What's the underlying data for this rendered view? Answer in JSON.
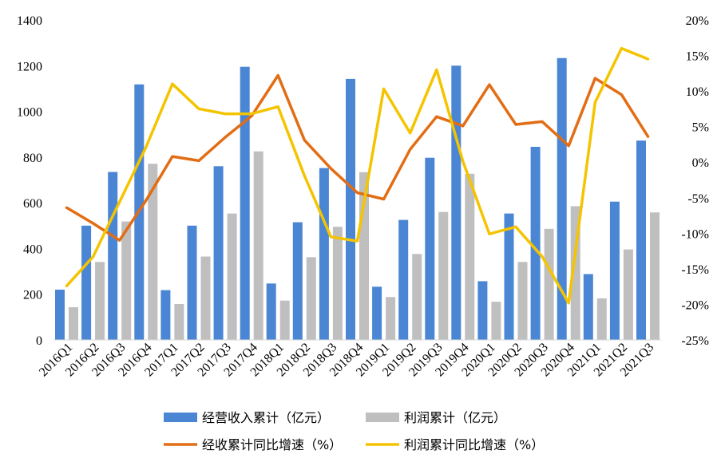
{
  "chart_data": {
    "type": "bar",
    "categories": [
      "2016Q1",
      "2016Q2",
      "2016Q3",
      "2016Q4",
      "2017Q1",
      "2017Q2",
      "2017Q3",
      "2017Q4",
      "2018Q1",
      "2018Q2",
      "2018Q3",
      "2018Q4",
      "2019Q1",
      "2019Q2",
      "2019Q3",
      "2019Q4",
      "2020Q1",
      "2020Q2",
      "2020Q3",
      "2020Q4",
      "2021Q1",
      "2021Q2",
      "2021Q3"
    ],
    "left_axis": {
      "ylim": [
        0,
        1400
      ],
      "ticks": [
        "0",
        "200",
        "400",
        "600",
        "800",
        "1000",
        "1200",
        "1400"
      ]
    },
    "right_axis": {
      "ylim": [
        -25,
        20
      ],
      "ticks": [
        "-25%",
        "-20%",
        "-15%",
        "-10%",
        "-5%",
        "0%",
        "5%",
        "10%",
        "15%",
        "20%"
      ]
    },
    "series": [
      {
        "name": "经营收入累计（亿元）",
        "kind": "bar",
        "axis": "left",
        "color": "#4a86d4",
        "values": [
          220,
          500,
          735,
          1118,
          218,
          500,
          760,
          1195,
          247,
          515,
          752,
          1142,
          233,
          525,
          797,
          1200,
          257,
          553,
          845,
          1233,
          288,
          605,
          872
        ]
      },
      {
        "name": "利润累计（亿元）",
        "kind": "bar",
        "axis": "left",
        "color": "#bfbfbf",
        "values": [
          143,
          341,
          518,
          771,
          157,
          365,
          553,
          825,
          172,
          362,
          495,
          734,
          188,
          376,
          560,
          727,
          167,
          341,
          486,
          585,
          182,
          396,
          558
        ]
      },
      {
        "name": "经收累计同比增速（%）",
        "kind": "line",
        "axis": "right",
        "color": "#e26d14",
        "values": [
          -6.4,
          -8.6,
          -11.0,
          -5.4,
          0.8,
          0.2,
          3.5,
          6.5,
          12.2,
          3.1,
          -0.9,
          -4.3,
          -5.2,
          1.8,
          6.4,
          5.1,
          10.9,
          5.3,
          5.7,
          2.3,
          11.8,
          9.5,
          3.6
        ]
      },
      {
        "name": "利润累计同比增速（%）",
        "kind": "line",
        "axis": "right",
        "color": "#f5c400",
        "values": [
          -17.4,
          -13.3,
          -5.6,
          2.1,
          11.0,
          7.5,
          6.8,
          6.8,
          7.8,
          -1.9,
          -10.5,
          -11.1,
          10.3,
          4.1,
          13.0,
          0.1,
          -10.1,
          -9.1,
          -13.3,
          -19.8,
          8.4,
          16.0,
          14.5
        ]
      }
    ],
    "legend_position": "bottom",
    "grid": false
  }
}
